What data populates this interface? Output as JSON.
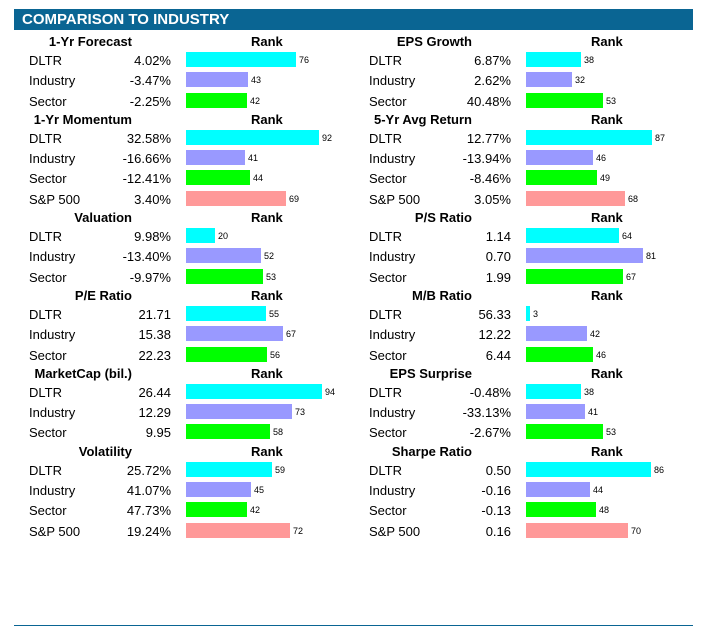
{
  "title": "COMPARISON TO INDUSTRY",
  "colors": {
    "banner": "#0a6593",
    "stock": "#00ffff",
    "industry": "#9999ff",
    "sector": "#00ff00",
    "sp500": "#ff9999"
  },
  "columns": [
    {
      "id": "left",
      "sections": [
        {
          "title": "1-Yr Forecast",
          "rank_label": "Rank",
          "rows": [
            {
              "label": "DLTR",
              "value": "4.02%",
              "rank": 76,
              "kind": "stock"
            },
            {
              "label": "Industry",
              "value": "-3.47%",
              "rank": 43,
              "kind": "industry"
            },
            {
              "label": "Sector",
              "value": "-2.25%",
              "rank": 42,
              "kind": "sector"
            }
          ]
        },
        {
          "title": "1-Yr Momentum",
          "rank_label": "Rank",
          "rows": [
            {
              "label": "DLTR",
              "value": "32.58%",
              "rank": 92,
              "kind": "stock"
            },
            {
              "label": "Industry",
              "value": "-16.66%",
              "rank": 41,
              "kind": "industry"
            },
            {
              "label": "Sector",
              "value": "-12.41%",
              "rank": 44,
              "kind": "sector"
            },
            {
              "label": "S&P 500",
              "value": "3.40%",
              "rank": 69,
              "kind": "sp500"
            }
          ]
        },
        {
          "title": "Valuation",
          "rank_label": "Rank",
          "rows": [
            {
              "label": "DLTR",
              "value": "9.98%",
              "rank": 20,
              "kind": "stock"
            },
            {
              "label": "Industry",
              "value": "-13.40%",
              "rank": 52,
              "kind": "industry"
            },
            {
              "label": "Sector",
              "value": "-9.97%",
              "rank": 53,
              "kind": "sector"
            }
          ]
        },
        {
          "title": "P/E Ratio",
          "rank_label": "Rank",
          "rows": [
            {
              "label": "DLTR",
              "value": "21.71",
              "rank": 55,
              "kind": "stock"
            },
            {
              "label": "Industry",
              "value": "15.38",
              "rank": 67,
              "kind": "industry"
            },
            {
              "label": "Sector",
              "value": "22.23",
              "rank": 56,
              "kind": "sector"
            }
          ]
        },
        {
          "title": "MarketCap (bil.)",
          "rank_label": "Rank",
          "rows": [
            {
              "label": "DLTR",
              "value": "26.44",
              "rank": 94,
              "kind": "stock"
            },
            {
              "label": "Industry",
              "value": "12.29",
              "rank": 73,
              "kind": "industry"
            },
            {
              "label": "Sector",
              "value": "9.95",
              "rank": 58,
              "kind": "sector"
            }
          ]
        },
        {
          "title": "Volatility",
          "rank_label": "Rank",
          "rows": [
            {
              "label": "DLTR",
              "value": "25.72%",
              "rank": 59,
              "kind": "stock"
            },
            {
              "label": "Industry",
              "value": "41.07%",
              "rank": 45,
              "kind": "industry"
            },
            {
              "label": "Sector",
              "value": "47.73%",
              "rank": 42,
              "kind": "sector"
            },
            {
              "label": "S&P 500",
              "value": "19.24%",
              "rank": 72,
              "kind": "sp500"
            }
          ]
        }
      ]
    },
    {
      "id": "right",
      "sections": [
        {
          "title": "EPS Growth",
          "rank_label": "Rank",
          "rows": [
            {
              "label": "DLTR",
              "value": "6.87%",
              "rank": 38,
              "kind": "stock"
            },
            {
              "label": "Industry",
              "value": "2.62%",
              "rank": 32,
              "kind": "industry"
            },
            {
              "label": "Sector",
              "value": "40.48%",
              "rank": 53,
              "kind": "sector"
            }
          ]
        },
        {
          "title": "5-Yr Avg Return",
          "rank_label": "Rank",
          "rows": [
            {
              "label": "DLTR",
              "value": "12.77%",
              "rank": 87,
              "kind": "stock"
            },
            {
              "label": "Industry",
              "value": "-13.94%",
              "rank": 46,
              "kind": "industry"
            },
            {
              "label": "Sector",
              "value": "-8.46%",
              "rank": 49,
              "kind": "sector"
            },
            {
              "label": "S&P 500",
              "value": "3.05%",
              "rank": 68,
              "kind": "sp500"
            }
          ]
        },
        {
          "title": "P/S Ratio",
          "rank_label": "Rank",
          "rows": [
            {
              "label": "DLTR",
              "value": "1.14",
              "rank": 64,
              "kind": "stock"
            },
            {
              "label": "Industry",
              "value": "0.70",
              "rank": 81,
              "kind": "industry"
            },
            {
              "label": "Sector",
              "value": "1.99",
              "rank": 67,
              "kind": "sector"
            }
          ]
        },
        {
          "title": "M/B Ratio",
          "rank_label": "Rank",
          "rows": [
            {
              "label": "DLTR",
              "value": "56.33",
              "rank": 3,
              "kind": "stock"
            },
            {
              "label": "Industry",
              "value": "12.22",
              "rank": 42,
              "kind": "industry"
            },
            {
              "label": "Sector",
              "value": "6.44",
              "rank": 46,
              "kind": "sector"
            }
          ]
        },
        {
          "title": "EPS Surprise",
          "rank_label": "Rank",
          "rows": [
            {
              "label": "DLTR",
              "value": "-0.48%",
              "rank": 38,
              "kind": "stock"
            },
            {
              "label": "Industry",
              "value": "-33.13%",
              "rank": 41,
              "kind": "industry"
            },
            {
              "label": "Sector",
              "value": "-2.67%",
              "rank": 53,
              "kind": "sector"
            }
          ]
        },
        {
          "title": "Sharpe Ratio",
          "rank_label": "Rank",
          "rows": [
            {
              "label": "DLTR",
              "value": "0.50",
              "rank": 86,
              "kind": "stock"
            },
            {
              "label": "Industry",
              "value": "-0.16",
              "rank": 44,
              "kind": "industry"
            },
            {
              "label": "Sector",
              "value": "-0.13",
              "rank": 48,
              "kind": "sector"
            },
            {
              "label": "S&P 500",
              "value": "0.16",
              "rank": 70,
              "kind": "sp500"
            }
          ]
        }
      ]
    }
  ]
}
